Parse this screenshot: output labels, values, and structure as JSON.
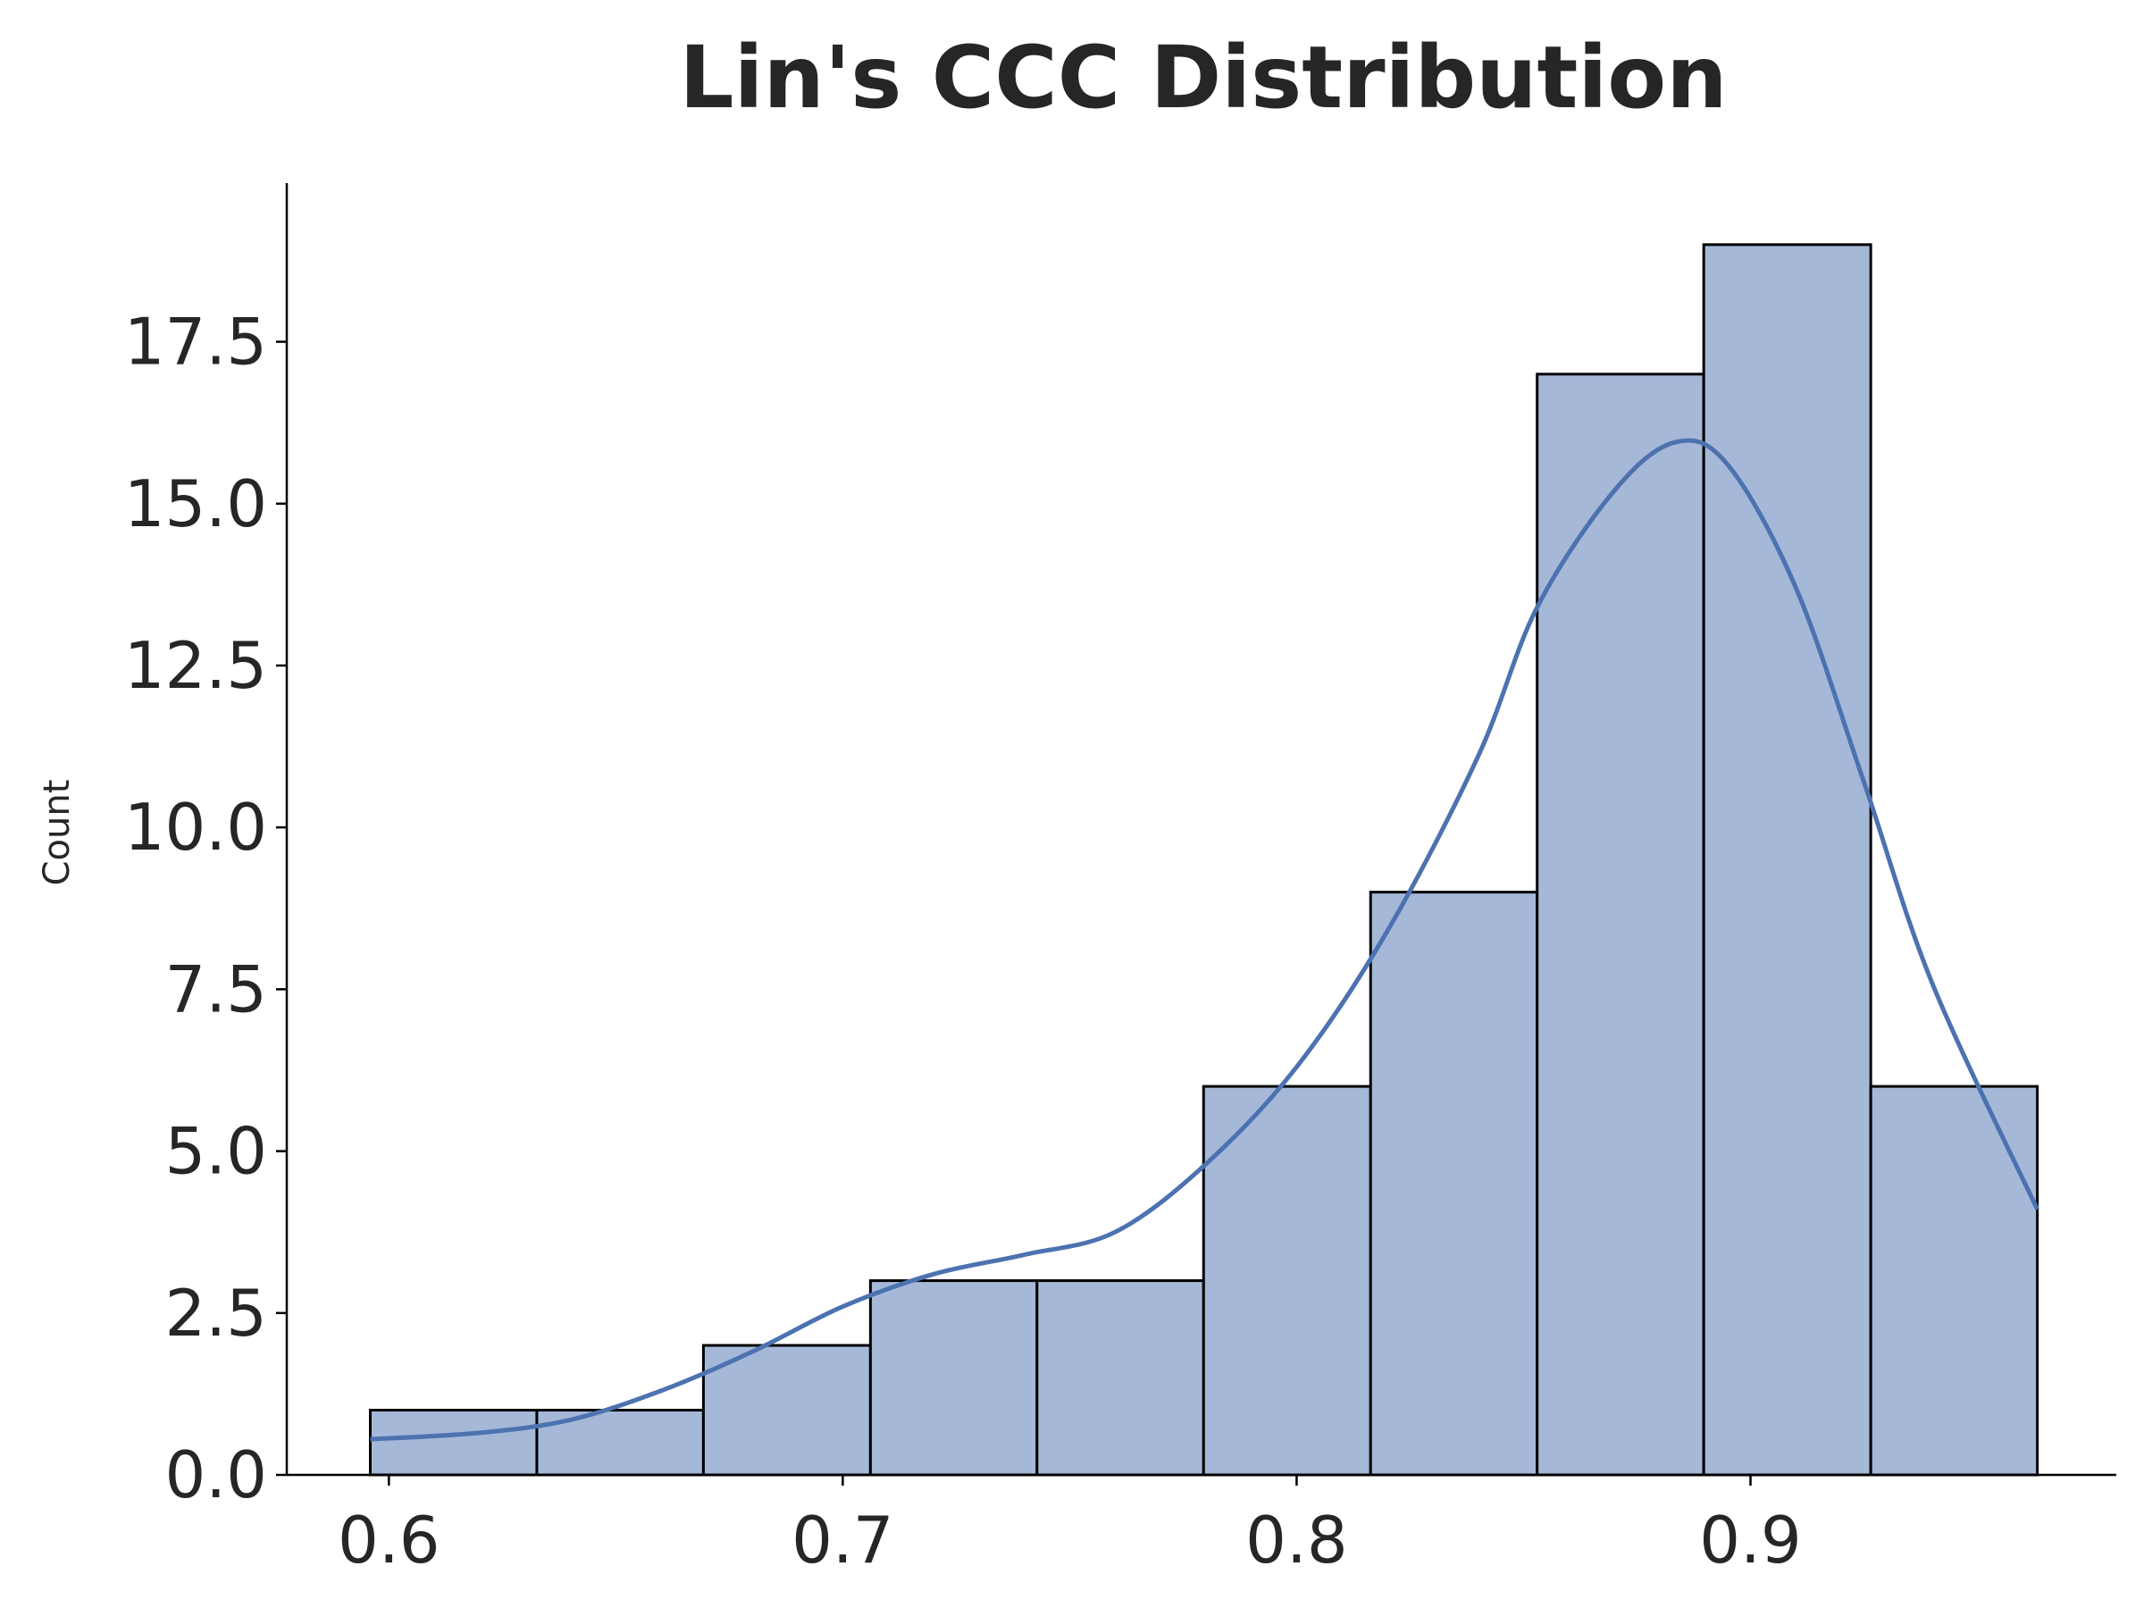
{
  "chart_data": {
    "type": "bar",
    "title": "Lin's CCC Distribution",
    "xlabel": "",
    "ylabel": "Count",
    "xlim": [
      0.5775,
      0.9806
    ],
    "ylim": [
      0,
      19.95
    ],
    "xticks": [
      0.6,
      0.7,
      0.8,
      0.9
    ],
    "xtick_labels": [
      "0.6",
      "0.7",
      "0.8",
      "0.9"
    ],
    "yticks": [
      0,
      2.5,
      5,
      7.5,
      10,
      12.5,
      15,
      17.5
    ],
    "ytick_labels": [
      "0.0",
      "2.5",
      "5.0",
      "7.5",
      "10.0",
      "12.5",
      "15.0",
      "17.5"
    ],
    "bin_edges": [
      0.5959,
      0.6326,
      0.6693,
      0.7061,
      0.7428,
      0.7795,
      0.8163,
      0.853,
      0.8897,
      0.9265,
      0.9632
    ],
    "counts": [
      1,
      1,
      2,
      3,
      3,
      6,
      9,
      17,
      19,
      6
    ],
    "kde": {
      "x": [
        0.5959,
        0.62,
        0.64,
        0.66,
        0.68,
        0.7,
        0.72,
        0.74,
        0.76,
        0.78,
        0.8,
        0.82,
        0.84,
        0.853,
        0.87,
        0.8835,
        0.895,
        0.91,
        0.925,
        0.94,
        0.9632
      ],
      "y": [
        0.55,
        0.65,
        0.85,
        1.3,
        1.9,
        2.6,
        3.1,
        3.4,
        3.75,
        4.8,
        6.3,
        8.4,
        11.1,
        13.4,
        15.2,
        15.95,
        15.6,
        13.7,
        10.7,
        7.6,
        4.1
      ]
    },
    "colors": {
      "bar_fill": "#a5b8d8",
      "bar_edge": "#000000",
      "kde_line": "#4c72b0"
    },
    "grid": false,
    "spines": "left-bottom"
  }
}
